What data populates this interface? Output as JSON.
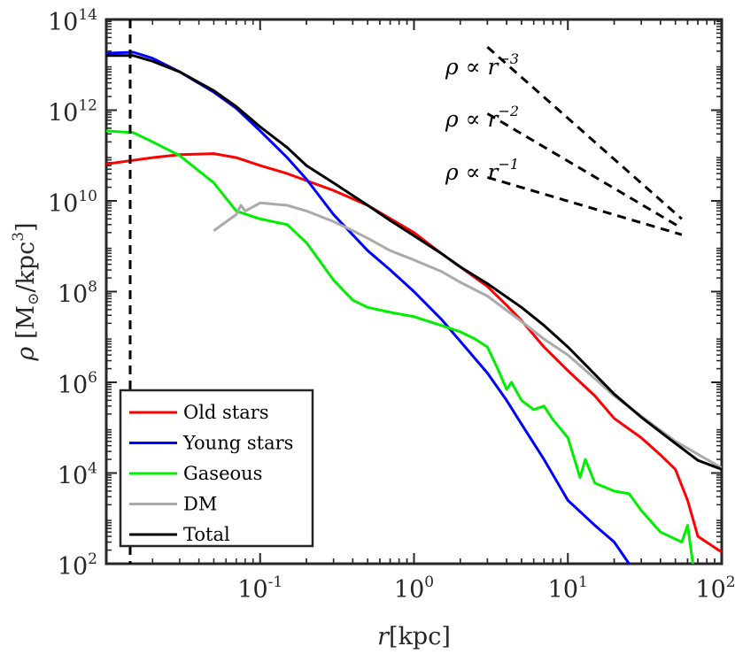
{
  "chart_data": {
    "type": "line",
    "xscale": "log",
    "yscale": "log",
    "xlim": [
      0.01,
      100
    ],
    "ylim": [
      100,
      100000000000000
    ],
    "xlabel": {
      "symbol": "r",
      "unit": "[kpc]"
    },
    "ylabel": {
      "symbol": "ρ",
      "unit": "[M",
      "unit_sub": "⊙",
      "unit_end": "/kpc",
      "unit_exp": "3",
      "unit_close": "]"
    },
    "x_ticks": [
      {
        "value": 0.1,
        "base": "10",
        "exp": "-1"
      },
      {
        "value": 1,
        "base": "10",
        "exp": "0"
      },
      {
        "value": 10,
        "base": "10",
        "exp": "1"
      },
      {
        "value": 100,
        "base": "10",
        "exp": "2"
      }
    ],
    "y_ticks": [
      {
        "value": 100,
        "base": "10",
        "exp": "2"
      },
      {
        "value": 10000,
        "base": "10",
        "exp": "4"
      },
      {
        "value": 1000000,
        "base": "10",
        "exp": "6"
      },
      {
        "value": 100000000,
        "base": "10",
        "exp": "8"
      },
      {
        "value": 10000000000,
        "base": "10",
        "exp": "10"
      },
      {
        "value": 1000000000000,
        "base": "10",
        "exp": "12"
      },
      {
        "value": 100000000000000,
        "base": "10",
        "exp": "14"
      }
    ],
    "vertical_line": {
      "x": 0.0143,
      "style": "dashed"
    },
    "series": [
      {
        "name": "Old stars",
        "color": "#ff0000",
        "x": [
          0.01,
          0.02,
          0.03,
          0.05,
          0.07,
          0.1,
          0.15,
          0.2,
          0.3,
          0.5,
          1,
          1.5,
          2,
          3,
          4,
          5,
          7,
          10,
          15,
          20,
          30,
          40,
          50,
          60,
          70,
          100
        ],
        "y": [
          65000000000.0,
          90000000000.0,
          105000000000.0,
          110000000000.0,
          90000000000.0,
          60000000000.0,
          40000000000.0,
          28000000000.0,
          17000000000.0,
          8000000000.0,
          2000000000.0,
          700000000.0,
          350000000.0,
          130000000.0,
          50000000.0,
          23000000.0,
          6000000.0,
          1800000.0,
          500000.0,
          160000.0,
          60000.0,
          25000.0,
          12000.0,
          2500.0,
          400,
          180
        ]
      },
      {
        "name": "Young stars",
        "color": "#0000ff",
        "x": [
          0.01,
          0.015,
          0.02,
          0.03,
          0.05,
          0.07,
          0.1,
          0.15,
          0.2,
          0.3,
          0.5,
          0.7,
          1,
          1.5,
          2,
          3,
          4,
          5,
          7,
          10,
          15,
          20,
          25
        ],
        "y": [
          18000000000000.0,
          19000000000000.0,
          14000000000000.0,
          7000000000000.0,
          2500000000000.0,
          1100000000000.0,
          350000000000.0,
          90000000000.0,
          30000000000.0,
          5000000000.0,
          800000000.0,
          300000000.0,
          100000000.0,
          25000000.0,
          8000000.0,
          1600000.0,
          400000.0,
          120000.0,
          20000.0,
          2500.0,
          700,
          300,
          100
        ]
      },
      {
        "name": "Gaseous",
        "color": "#00ee00",
        "x": [
          0.01,
          0.015,
          0.02,
          0.03,
          0.05,
          0.07,
          0.1,
          0.15,
          0.2,
          0.3,
          0.4,
          0.5,
          0.7,
          1,
          1.5,
          2,
          2.5,
          3,
          3.5,
          4,
          4.3,
          5,
          6,
          7,
          8,
          10,
          12,
          13,
          15,
          20,
          25,
          30,
          40,
          50,
          55,
          60,
          65
        ],
        "y": [
          350000000000.0,
          320000000000.0,
          200000000000.0,
          100000000000.0,
          25000000000.0,
          6000000000.0,
          4000000000.0,
          3000000000.0,
          1200000000.0,
          180000000.0,
          65000000.0,
          45000000.0,
          35000000.0,
          28000000.0,
          18000000.0,
          13000000.0,
          9000000.0,
          6000000.0,
          2000000.0,
          700000.0,
          1000000.0,
          400000.0,
          250000.0,
          300000.0,
          150000.0,
          60000.0,
          8000.0,
          20000.0,
          6000.0,
          4000.0,
          3500.0,
          1500.0,
          500,
          350,
          300,
          700,
          100
        ]
      },
      {
        "name": "DM",
        "color": "#aaaaaa",
        "x": [
          0.05,
          0.07,
          0.075,
          0.08,
          0.1,
          0.15,
          0.2,
          0.3,
          0.4,
          0.5,
          0.7,
          1,
          1.5,
          2,
          3,
          5,
          7,
          10,
          15,
          20,
          30,
          50,
          100
        ],
        "y": [
          2200000000.0,
          5000000000.0,
          8000000000.0,
          6000000000.0,
          9000000000.0,
          8000000000.0,
          6000000000.0,
          3500000000.0,
          2200000000.0,
          1500000000.0,
          800000000.0,
          500000000.0,
          280000000.0,
          160000000.0,
          80000000.0,
          22000000.0,
          9000000.0,
          4000000.0,
          1200000.0,
          500000.0,
          180000.0,
          50000.0,
          13000.0
        ]
      },
      {
        "name": "Total",
        "color": "#000000",
        "x": [
          0.01,
          0.015,
          0.02,
          0.03,
          0.05,
          0.07,
          0.1,
          0.15,
          0.2,
          0.3,
          0.5,
          0.7,
          1,
          1.5,
          2,
          3,
          5,
          7,
          10,
          15,
          20,
          30,
          50,
          70,
          100
        ],
        "y": [
          16000000000000.0,
          16000000000000.0,
          12000000000000.0,
          7000000000000.0,
          2700000000000.0,
          1200000000000.0,
          430000000000.0,
          150000000000.0,
          60000000000.0,
          25000000000.0,
          8000000000.0,
          3700000000.0,
          1700000000.0,
          700000000.0,
          350000000.0,
          150000000.0,
          45000000.0,
          18000000.0,
          6000000.0,
          1500000.0,
          550000.0,
          170000.0,
          45000.0,
          19000.0,
          12000.0
        ]
      }
    ],
    "reference_lines": [
      {
        "label_lhs": "ρ ∝ r",
        "exponent": "−3",
        "slope": -3,
        "x_start": 3,
        "x_end": 55,
        "y_end": 4000000000.0
      },
      {
        "label_lhs": "ρ ∝ r",
        "exponent": "−2",
        "slope": -2,
        "x_start": 3,
        "x_end": 55,
        "y_end": 2500000000.0
      },
      {
        "label_lhs": "ρ ∝ r",
        "exponent": "−1",
        "slope": -1,
        "x_start": 3,
        "x_end": 55,
        "y_end": 1800000000.0
      }
    ],
    "legend_position": "bottom-left"
  }
}
